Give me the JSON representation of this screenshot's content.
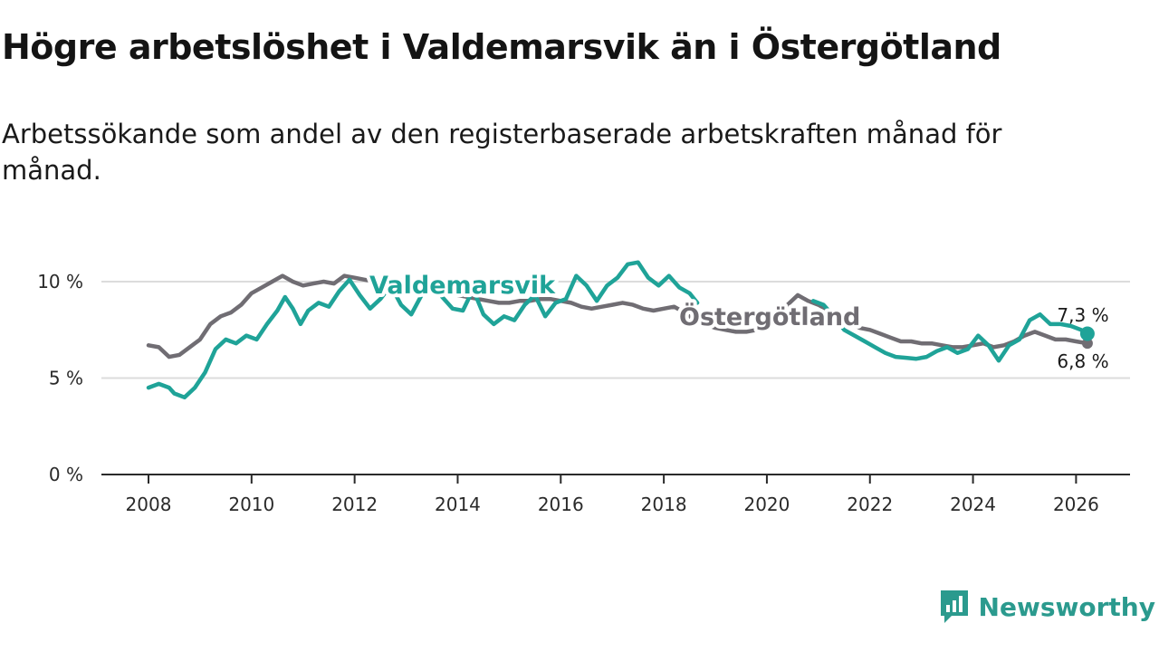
{
  "chart_data": {
    "type": "line",
    "title": "Högre arbetslöshet i Valdemarsvik än i Östergötland",
    "subtitle": "Arbetssökande som andel av den registerbaserade arbetskraften månad för månad.",
    "x_ticks": [
      "2008",
      "2010",
      "2012",
      "2014",
      "2016",
      "2018",
      "2020",
      "2022",
      "2024",
      "2026"
    ],
    "y_ticks": [
      "0 %",
      "5 %",
      "10 %"
    ],
    "y_tick_values": [
      0,
      5,
      10
    ],
    "xlim": [
      2008,
      2027.1
    ],
    "ylim": [
      0,
      10
    ],
    "series": [
      {
        "name": "Valdemarsvik",
        "color": "#1fa398",
        "end_label": "7,3 %",
        "points": [
          [
            2008.0,
            4.5
          ],
          [
            2008.2,
            4.7
          ],
          [
            2008.4,
            4.5
          ],
          [
            2008.5,
            4.2
          ],
          [
            2008.7,
            4.0
          ],
          [
            2008.9,
            4.5
          ],
          [
            2009.1,
            5.3
          ],
          [
            2009.3,
            6.5
          ],
          [
            2009.5,
            7.0
          ],
          [
            2009.7,
            6.8
          ],
          [
            2009.9,
            7.2
          ],
          [
            2010.1,
            7.0
          ],
          [
            2010.3,
            7.8
          ],
          [
            2010.5,
            8.5
          ],
          [
            2010.65,
            9.2
          ],
          [
            2010.8,
            8.6
          ],
          [
            2010.95,
            7.8
          ],
          [
            2011.1,
            8.5
          ],
          [
            2011.3,
            8.9
          ],
          [
            2011.5,
            8.7
          ],
          [
            2011.7,
            9.5
          ],
          [
            2011.9,
            10.1
          ],
          [
            2012.1,
            9.3
          ],
          [
            2012.3,
            8.6
          ],
          [
            2012.5,
            9.1
          ],
          [
            2012.7,
            9.8
          ],
          [
            2012.9,
            8.8
          ],
          [
            2013.1,
            8.3
          ],
          [
            2013.3,
            9.3
          ],
          [
            2013.5,
            9.8
          ],
          [
            2013.7,
            9.2
          ],
          [
            2013.9,
            8.6
          ],
          [
            2014.1,
            8.5
          ],
          [
            2014.3,
            9.6
          ],
          [
            2014.5,
            8.3
          ],
          [
            2014.7,
            7.8
          ],
          [
            2014.9,
            8.2
          ],
          [
            2015.1,
            8.0
          ],
          [
            2015.3,
            8.8
          ],
          [
            2015.5,
            9.3
          ],
          [
            2015.7,
            8.2
          ],
          [
            2015.9,
            8.9
          ],
          [
            2016.1,
            9.1
          ],
          [
            2016.3,
            10.3
          ],
          [
            2016.5,
            9.8
          ],
          [
            2016.7,
            9.0
          ],
          [
            2016.9,
            9.8
          ],
          [
            2017.1,
            10.2
          ],
          [
            2017.3,
            10.9
          ],
          [
            2017.5,
            11.0
          ],
          [
            2017.7,
            10.2
          ],
          [
            2017.9,
            9.8
          ],
          [
            2018.1,
            10.3
          ],
          [
            2018.3,
            9.7
          ],
          [
            2018.5,
            9.4
          ],
          [
            2018.65,
            8.9
          ]
        ],
        "points_late": [
          [
            2020.9,
            9.0
          ],
          [
            2021.1,
            8.8
          ],
          [
            2021.3,
            8.2
          ],
          [
            2021.5,
            7.5
          ],
          [
            2021.7,
            7.2
          ],
          [
            2021.9,
            6.9
          ],
          [
            2022.1,
            6.6
          ],
          [
            2022.3,
            6.3
          ],
          [
            2022.5,
            6.1
          ],
          [
            2022.7,
            6.05
          ],
          [
            2022.9,
            6.0
          ],
          [
            2023.1,
            6.1
          ],
          [
            2023.3,
            6.4
          ],
          [
            2023.5,
            6.6
          ],
          [
            2023.7,
            6.3
          ],
          [
            2023.9,
            6.5
          ],
          [
            2024.1,
            7.2
          ],
          [
            2024.3,
            6.7
          ],
          [
            2024.5,
            5.9
          ],
          [
            2024.7,
            6.7
          ],
          [
            2024.9,
            7.0
          ],
          [
            2025.1,
            8.0
          ],
          [
            2025.3,
            8.3
          ],
          [
            2025.5,
            7.8
          ],
          [
            2025.7,
            7.8
          ],
          [
            2025.9,
            7.7
          ],
          [
            2026.1,
            7.5
          ],
          [
            2026.22,
            7.3
          ]
        ]
      },
      {
        "name": "Östergötland",
        "color": "#706d73",
        "end_label": "6,8 %",
        "points": [
          [
            2008.0,
            6.7
          ],
          [
            2008.2,
            6.6
          ],
          [
            2008.4,
            6.1
          ],
          [
            2008.6,
            6.2
          ],
          [
            2008.8,
            6.6
          ],
          [
            2009.0,
            7.0
          ],
          [
            2009.2,
            7.8
          ],
          [
            2009.4,
            8.2
          ],
          [
            2009.6,
            8.4
          ],
          [
            2009.8,
            8.8
          ],
          [
            2010.0,
            9.4
          ],
          [
            2010.2,
            9.7
          ],
          [
            2010.4,
            10.0
          ],
          [
            2010.6,
            10.3
          ],
          [
            2010.8,
            10.0
          ],
          [
            2011.0,
            9.8
          ],
          [
            2011.2,
            9.9
          ],
          [
            2011.4,
            10.0
          ],
          [
            2011.6,
            9.9
          ],
          [
            2011.8,
            10.3
          ],
          [
            2012.0,
            10.2
          ],
          [
            2012.2,
            10.1
          ],
          [
            2012.4,
            10.0
          ],
          [
            2012.6,
            10.2
          ],
          [
            2012.8,
            10.0
          ],
          [
            2013.0,
            10.1
          ],
          [
            2013.2,
            9.9
          ],
          [
            2013.4,
            9.7
          ],
          [
            2013.6,
            9.6
          ],
          [
            2013.8,
            9.5
          ],
          [
            2014.0,
            9.3
          ],
          [
            2014.2,
            9.2
          ],
          [
            2014.4,
            9.1
          ],
          [
            2014.6,
            9.0
          ],
          [
            2014.8,
            8.9
          ],
          [
            2015.0,
            8.9
          ],
          [
            2015.2,
            9.0
          ],
          [
            2015.4,
            9.0
          ],
          [
            2015.6,
            9.1
          ],
          [
            2015.8,
            9.1
          ],
          [
            2016.0,
            9.0
          ],
          [
            2016.2,
            8.9
          ],
          [
            2016.4,
            8.7
          ],
          [
            2016.6,
            8.6
          ],
          [
            2016.8,
            8.7
          ],
          [
            2017.0,
            8.8
          ],
          [
            2017.2,
            8.9
          ],
          [
            2017.4,
            8.8
          ],
          [
            2017.6,
            8.6
          ],
          [
            2017.8,
            8.5
          ],
          [
            2018.0,
            8.6
          ],
          [
            2018.2,
            8.7
          ],
          [
            2018.4,
            8.4
          ],
          [
            2018.6,
            8.0
          ],
          [
            2018.8,
            7.8
          ],
          [
            2019.0,
            7.6
          ],
          [
            2019.2,
            7.5
          ],
          [
            2019.4,
            7.4
          ],
          [
            2019.6,
            7.4
          ],
          [
            2019.8,
            7.5
          ],
          [
            2020.0,
            7.6
          ],
          [
            2020.2,
            7.9
          ],
          [
            2020.4,
            8.8
          ],
          [
            2020.6,
            9.3
          ],
          [
            2020.8,
            9.0
          ],
          [
            2021.0,
            8.8
          ],
          [
            2021.2,
            8.5
          ],
          [
            2021.4,
            8.1
          ],
          [
            2021.6,
            7.9
          ],
          [
            2021.8,
            7.6
          ],
          [
            2022.0,
            7.5
          ],
          [
            2022.2,
            7.3
          ],
          [
            2022.4,
            7.1
          ],
          [
            2022.6,
            6.9
          ],
          [
            2022.8,
            6.9
          ],
          [
            2023.0,
            6.8
          ],
          [
            2023.2,
            6.8
          ],
          [
            2023.4,
            6.7
          ],
          [
            2023.6,
            6.6
          ],
          [
            2023.8,
            6.6
          ],
          [
            2024.0,
            6.7
          ],
          [
            2024.2,
            6.8
          ],
          [
            2024.4,
            6.6
          ],
          [
            2024.6,
            6.7
          ],
          [
            2024.8,
            6.9
          ],
          [
            2025.0,
            7.2
          ],
          [
            2025.2,
            7.4
          ],
          [
            2025.4,
            7.2
          ],
          [
            2025.6,
            7.0
          ],
          [
            2025.8,
            7.0
          ],
          [
            2026.0,
            6.9
          ],
          [
            2026.22,
            6.8
          ]
        ]
      }
    ]
  },
  "branding": {
    "name": "Newsworthy",
    "icon": "newsworthy-logo-icon",
    "color": "#2b9a8e"
  }
}
